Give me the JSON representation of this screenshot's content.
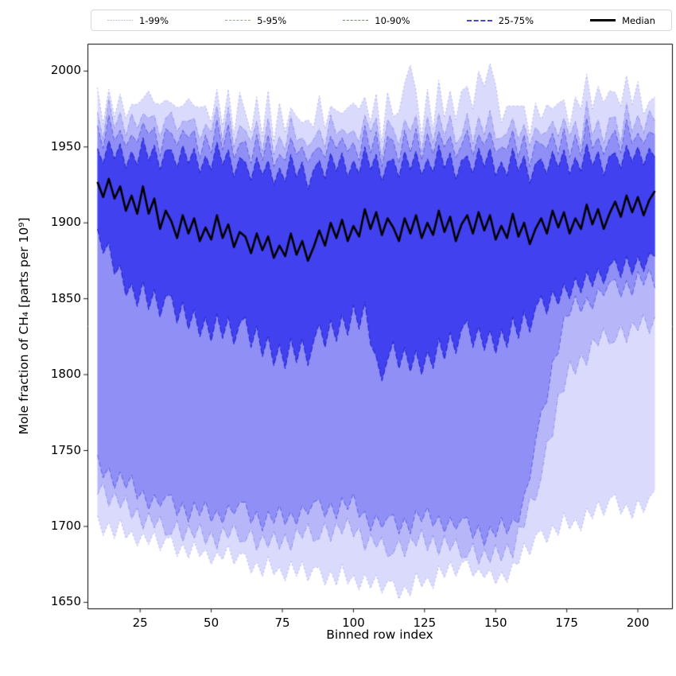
{
  "chart_data": {
    "type": "area",
    "subtype": "percentile-fan",
    "title": "",
    "xlabel": "Binned row index",
    "ylabel": "Mole fraction of CH₄ [parts per 10⁹]",
    "xlim": [
      6.5,
      212
    ],
    "ylim": [
      1646,
      2018
    ],
    "xticks": [
      25,
      50,
      75,
      100,
      125,
      150,
      175,
      200
    ],
    "yticks": [
      1650,
      1700,
      1750,
      1800,
      1850,
      1900,
      1950,
      2000
    ],
    "grid": false,
    "legend_position": "top",
    "legend": [
      {
        "label": "1-99%",
        "style": "dotted",
        "weight": 1,
        "color": "#b2b2ec"
      },
      {
        "label": "5-95%",
        "style": "dashdot",
        "weight": 1,
        "color": "#9a9ae8"
      },
      {
        "label": "10-90%",
        "style": "dashed",
        "weight": 1.5,
        "color": "#7878e4"
      },
      {
        "label": "25-75%",
        "style": "dashed",
        "weight": 2,
        "color": "#4646d8"
      },
      {
        "label": "Median",
        "style": "solid",
        "weight": 3,
        "color": "#000000"
      }
    ],
    "band_fill_color": "#3434ee",
    "median_color": "#000000",
    "bands": [
      {
        "label": "1-99%",
        "lo": "p1",
        "hi": "p99",
        "alpha": 0.18,
        "dash": [
          2,
          3
        ],
        "edge_width": 0.8,
        "edge_alpha": 0.5,
        "edge_color": "#5a5ae0"
      },
      {
        "label": "5-95%",
        "lo": "p5",
        "hi": "p95",
        "alpha": 0.22,
        "dash": [
          5,
          2,
          1,
          2
        ],
        "edge_width": 0.8,
        "edge_alpha": 0.6,
        "edge_color": "#5a5ae0"
      },
      {
        "label": "10-90%",
        "lo": "p10",
        "hi": "p90",
        "alpha": 0.3,
        "dash": [
          6,
          3
        ],
        "edge_width": 1.0,
        "edge_alpha": 0.75,
        "edge_color": "#4b4bdc"
      },
      {
        "label": "25-75%",
        "lo": "p25",
        "hi": "p75",
        "alpha": 0.85,
        "dash": [
          7,
          3
        ],
        "edge_width": 1.3,
        "edge_alpha": 0.95,
        "edge_color": "#2b2bd0"
      }
    ],
    "x": [
      10,
      12,
      14,
      16,
      18,
      20,
      22,
      24,
      26,
      28,
      30,
      32,
      34,
      36,
      38,
      40,
      42,
      44,
      46,
      48,
      50,
      52,
      54,
      56,
      58,
      60,
      62,
      64,
      66,
      68,
      70,
      72,
      74,
      76,
      78,
      80,
      82,
      84,
      86,
      88,
      90,
      92,
      94,
      96,
      98,
      100,
      102,
      104,
      106,
      108,
      110,
      112,
      114,
      116,
      118,
      120,
      122,
      124,
      126,
      128,
      130,
      132,
      134,
      136,
      138,
      140,
      142,
      144,
      146,
      148,
      150,
      152,
      154,
      156,
      158,
      160,
      162,
      164,
      166,
      168,
      170,
      172,
      174,
      176,
      178,
      180,
      182,
      184,
      186,
      188,
      190,
      192,
      194,
      196,
      198,
      200,
      202,
      204,
      206
    ],
    "series": {
      "p1": [
        1707,
        1694,
        1703,
        1692,
        1705,
        1692,
        1697,
        1687,
        1696,
        1688,
        1697,
        1684,
        1692,
        1693,
        1680,
        1689,
        1679,
        1690,
        1680,
        1685,
        1675,
        1683,
        1678,
        1688,
        1675,
        1682,
        1682,
        1669,
        1677,
        1667,
        1680,
        1668,
        1673,
        1664,
        1677,
        1667,
        1677,
        1664,
        1673,
        1673,
        1661,
        1671,
        1661,
        1675,
        1662,
        1668,
        1658,
        1669,
        1659,
        1668,
        1656,
        1664,
        1664,
        1652,
        1661,
        1654,
        1670,
        1660,
        1667,
        1659,
        1674,
        1666,
        1677,
        1667,
        1676,
        1678,
        1667,
        1672,
        1666,
        1672,
        1662,
        1670,
        1663,
        1676,
        1675,
        1689,
        1681,
        1694,
        1698,
        1689,
        1701,
        1694,
        1709,
        1698,
        1705,
        1697,
        1712,
        1705,
        1717,
        1707,
        1718,
        1721,
        1708,
        1715,
        1705,
        1718,
        1709,
        1719,
        1724
      ],
      "p5": [
        1721,
        1729,
        1713,
        1723,
        1712,
        1720,
        1705,
        1712,
        1698,
        1709,
        1699,
        1707,
        1694,
        1695,
        1704,
        1690,
        1701,
        1692,
        1702,
        1688,
        1697,
        1685,
        1700,
        1692,
        1702,
        1690,
        1690,
        1699,
        1684,
        1695,
        1686,
        1697,
        1685,
        1695,
        1684,
        1699,
        1692,
        1702,
        1690,
        1692,
        1703,
        1690,
        1703,
        1695,
        1706,
        1693,
        1700,
        1684,
        1695,
        1686,
        1693,
        1680,
        1682,
        1692,
        1680,
        1693,
        1687,
        1698,
        1684,
        1694,
        1681,
        1694,
        1684,
        1692,
        1679,
        1680,
        1689,
        1675,
        1685,
        1676,
        1688,
        1677,
        1689,
        1679,
        1700,
        1699,
        1719,
        1717,
        1732,
        1756,
        1759,
        1787,
        1789,
        1809,
        1800,
        1814,
        1806,
        1824,
        1819,
        1831,
        1820,
        1822,
        1833,
        1821,
        1835,
        1829,
        1840,
        1827,
        1838
      ],
      "p10": [
        1747,
        1732,
        1739,
        1725,
        1736,
        1725,
        1734,
        1718,
        1724,
        1711,
        1721,
        1713,
        1720,
        1721,
        1707,
        1716,
        1703,
        1716,
        1707,
        1717,
        1703,
        1711,
        1702,
        1714,
        1708,
        1716,
        1716,
        1702,
        1710,
        1697,
        1710,
        1702,
        1714,
        1701,
        1710,
        1701,
        1714,
        1708,
        1716,
        1718,
        1706,
        1716,
        1705,
        1719,
        1711,
        1722,
        1706,
        1710,
        1697,
        1708,
        1699,
        1706,
        1708,
        1695,
        1706,
        1695,
        1711,
        1703,
        1713,
        1700,
        1707,
        1696,
        1706,
        1698,
        1705,
        1706,
        1692,
        1701,
        1687,
        1700,
        1693,
        1706,
        1695,
        1705,
        1702,
        1721,
        1731,
        1756,
        1776,
        1782,
        1809,
        1814,
        1838,
        1839,
        1852,
        1841,
        1851,
        1843,
        1857,
        1852,
        1861,
        1863,
        1851,
        1862,
        1852,
        1868,
        1859,
        1870,
        1857
      ],
      "p25": [
        1896,
        1880,
        1887,
        1866,
        1872,
        1852,
        1860,
        1845,
        1862,
        1843,
        1856,
        1838,
        1852,
        1852,
        1834,
        1848,
        1830,
        1843,
        1825,
        1838,
        1822,
        1840,
        1824,
        1838,
        1820,
        1834,
        1838,
        1818,
        1832,
        1812,
        1826,
        1806,
        1820,
        1804,
        1824,
        1808,
        1824,
        1806,
        1822,
        1834,
        1818,
        1836,
        1822,
        1840,
        1826,
        1846,
        1830,
        1848,
        1820,
        1812,
        1796,
        1810,
        1822,
        1804,
        1818,
        1802,
        1816,
        1800,
        1816,
        1804,
        1824,
        1810,
        1828,
        1814,
        1830,
        1836,
        1818,
        1832,
        1816,
        1830,
        1814,
        1830,
        1818,
        1838,
        1824,
        1842,
        1828,
        1844,
        1852,
        1840,
        1856,
        1846,
        1860,
        1850,
        1864,
        1854,
        1868,
        1858,
        1870,
        1860,
        1872,
        1876,
        1864,
        1878,
        1866,
        1878,
        1868,
        1880,
        1878
      ],
      "median": [
        1927,
        1917,
        1929,
        1916,
        1924,
        1908,
        1918,
        1906,
        1924,
        1906,
        1916,
        1896,
        1908,
        1901,
        1890,
        1905,
        1893,
        1903,
        1888,
        1897,
        1889,
        1905,
        1890,
        1899,
        1884,
        1894,
        1891,
        1880,
        1893,
        1882,
        1891,
        1877,
        1885,
        1878,
        1893,
        1879,
        1888,
        1875,
        1884,
        1895,
        1885,
        1900,
        1890,
        1902,
        1888,
        1898,
        1891,
        1909,
        1896,
        1907,
        1892,
        1903,
        1897,
        1888,
        1903,
        1893,
        1905,
        1890,
        1900,
        1892,
        1908,
        1894,
        1904,
        1888,
        1899,
        1905,
        1893,
        1907,
        1895,
        1905,
        1889,
        1898,
        1890,
        1906,
        1891,
        1900,
        1886,
        1896,
        1903,
        1893,
        1908,
        1897,
        1907,
        1893,
        1903,
        1896,
        1912,
        1899,
        1909,
        1896,
        1906,
        1914,
        1904,
        1918,
        1907,
        1917,
        1905,
        1915,
        1921
      ],
      "p75": [
        1949,
        1939,
        1954,
        1942,
        1952,
        1936,
        1947,
        1938,
        1956,
        1941,
        1951,
        1935,
        1948,
        1948,
        1936,
        1951,
        1939,
        1949,
        1933,
        1944,
        1935,
        1953,
        1938,
        1948,
        1930,
        1943,
        1940,
        1928,
        1943,
        1931,
        1941,
        1925,
        1936,
        1927,
        1945,
        1930,
        1940,
        1922,
        1935,
        1941,
        1929,
        1946,
        1934,
        1946,
        1930,
        1941,
        1932,
        1950,
        1935,
        1945,
        1927,
        1940,
        1942,
        1930,
        1947,
        1935,
        1947,
        1931,
        1942,
        1933,
        1951,
        1936,
        1946,
        1928,
        1941,
        1944,
        1932,
        1949,
        1937,
        1949,
        1931,
        1940,
        1931,
        1949,
        1934,
        1944,
        1926,
        1939,
        1942,
        1932,
        1947,
        1936,
        1948,
        1932,
        1943,
        1934,
        1952,
        1937,
        1947,
        1931,
        1944,
        1946,
        1936,
        1951,
        1940,
        1950,
        1938,
        1949,
        1943
      ],
      "p90": [
        1964,
        1949,
        1971,
        1954,
        1961,
        1950,
        1958,
        1953,
        1966,
        1958,
        1963,
        1944,
        1962,
        1959,
        1951,
        1961,
        1956,
        1961,
        1942,
        1958,
        1946,
        1968,
        1948,
        1965,
        1942,
        1952,
        1954,
        1939,
        1958,
        1941,
        1958,
        1937,
        1945,
        1941,
        1956,
        1945,
        1950,
        1939,
        1947,
        1950,
        1943,
        1957,
        1949,
        1956,
        1947,
        1953,
        1941,
        1964,
        1946,
        1960,
        1937,
        1957,
        1954,
        1939,
        1961,
        1946,
        1962,
        1941,
        1959,
        1945,
        1960,
        1950,
        1957,
        1943,
        1951,
        1961,
        1944,
        1958,
        1951,
        1960,
        1946,
        1950,
        1948,
        1961,
        1943,
        1958,
        1937,
        1954,
        1952,
        1949,
        1959,
        1945,
        1962,
        1943,
        1958,
        1944,
        1969,
        1949,
        1956,
        1945,
        1955,
        1961,
        1946,
        1968,
        1952,
        1959,
        1952,
        1960,
        1958
      ],
      "p95": [
        1973,
        1955,
        1982,
        1962,
        1973,
        1957,
        1972,
        1962,
        1972,
        1969,
        1971,
        1956,
        1969,
        1973,
        1960,
        1967,
        1967,
        1969,
        1954,
        1965,
        1960,
        1977,
        1954,
        1976,
        1950,
        1964,
        1961,
        1953,
        1967,
        1947,
        1969,
        1945,
        1957,
        1948,
        1970,
        1954,
        1956,
        1950,
        1955,
        1962,
        1950,
        1971,
        1958,
        1962,
        1958,
        1961,
        1953,
        1971,
        1960,
        1969,
        1943,
        1968,
        1962,
        1951,
        1968,
        1960,
        1971,
        1947,
        1970,
        1953,
        1972,
        1957,
        1971,
        1952,
        1957,
        1972,
        1952,
        1970,
        1958,
        1974,
        1955,
        1956,
        1959,
        1969,
        1955,
        1965,
        1951,
        1963,
        1958,
        1960,
        1967,
        1957,
        1969,
        1957,
        1967,
        1950,
        1980,
        1957,
        1968,
        1952,
        1969,
        1970,
        1952,
        1979,
        1960,
        1971,
        1959,
        1974,
        1967
      ],
      "p99": [
        1989,
        1965,
        1988,
        1970,
        1985,
        1969,
        1978,
        1978,
        1982,
        1987,
        1979,
        1978,
        1981,
        1979,
        1976,
        1977,
        1982,
        1977,
        1976,
        1977,
        1966,
        1988,
        1964,
        1988,
        1958,
        1986,
        1973,
        1959,
        1983,
        1957,
        1987,
        1953,
        1979,
        1960,
        1976,
        1970,
        1966,
        1968,
        1963,
        1984,
        1962,
        1977,
        1974,
        1972,
        1976,
        1979,
        1975,
        1983,
        1966,
        1985,
        1953,
        1986,
        1970,
        1973,
        1992,
        2004,
        1987,
        1957,
        1988,
        1961,
        1994,
        1969,
        1987,
        1968,
        1987,
        1990,
        1975,
        2000,
        1990,
        2005,
        1991,
        1966,
        1977,
        1977,
        1977,
        1977,
        1957,
        1979,
        1968,
        1978,
        1975,
        1979,
        1981,
        1963,
        1983,
        1975,
        1998,
        1975,
        1990,
        1979,
        1987,
        1986,
        1977,
        1997,
        1978,
        1993,
        1971,
        1980,
        1983
      ]
    }
  }
}
